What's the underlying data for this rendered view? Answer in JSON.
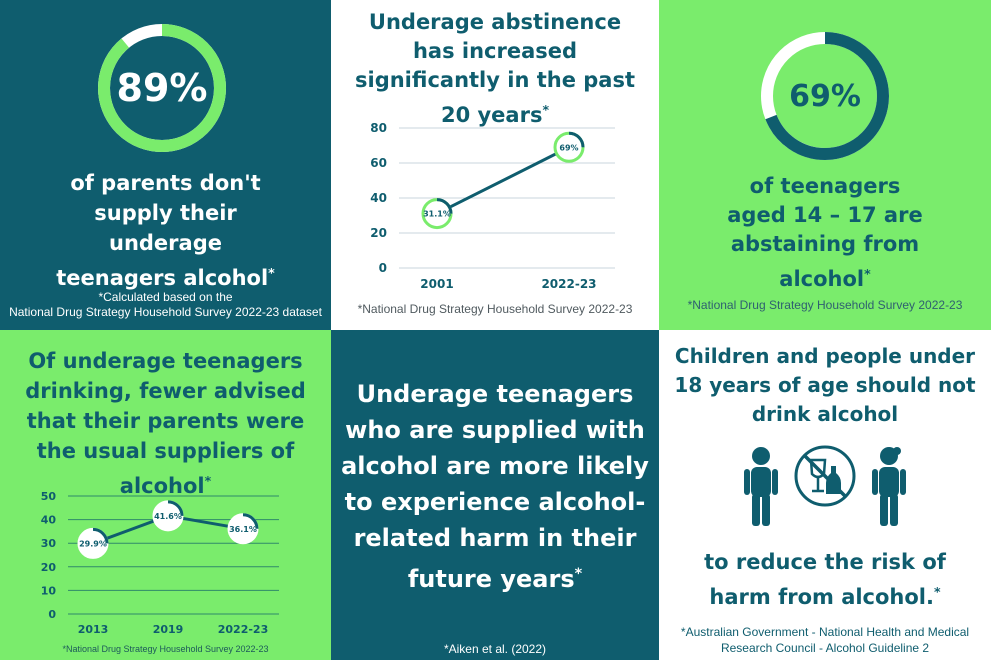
{
  "colors": {
    "teal": "#0f5d6e",
    "green": "#7aec6c",
    "white": "#ffffff"
  },
  "tile1": {
    "percent": "89%",
    "percent_value": 89,
    "text": "of parents don't supply their underage teenagers alcohol",
    "asterisk": "*",
    "footnote_line1": "*Calculated based on the",
    "footnote_line2": "National Drug Strategy Household Survey 2022-23 dataset"
  },
  "tile2": {
    "title": "Underage abstinence has increased significantly in the past 20 years",
    "asterisk": "*",
    "footnote": "*National Drug Strategy Household Survey 2022-23",
    "chart_data": {
      "type": "line",
      "x": [
        "2001",
        "2022-23"
      ],
      "values": [
        31.1,
        69
      ],
      "labels": [
        "31.1%",
        "69%"
      ],
      "ylim": [
        0,
        80
      ],
      "yticks": [
        "0",
        "20",
        "40",
        "60",
        "80"
      ]
    }
  },
  "tile3": {
    "percent": "69%",
    "percent_value": 69,
    "text": "of teenagers aged 14 – 17 are abstaining from alcohol",
    "asterisk": "*",
    "footnote": "*National Drug Strategy Household Survey 2022-23"
  },
  "tile4": {
    "title": "Of underage teenagers drinking, fewer advised that their parents were the usual suppliers of alcohol",
    "asterisk": "*",
    "footnote": "*National Drug Strategy Household Survey 2022-23",
    "chart_data": {
      "type": "line",
      "x": [
        "2013",
        "2019",
        "2022-23"
      ],
      "values": [
        29.9,
        41.6,
        36.1
      ],
      "labels": [
        "29.9%",
        "41.6%",
        "36.1%"
      ],
      "ylim": [
        0,
        50
      ],
      "yticks": [
        "0",
        "10",
        "20",
        "30",
        "40",
        "50"
      ]
    }
  },
  "tile5": {
    "text": "Underage teenagers who are supplied with alcohol are more likely to experience alcohol-related harm in their future years",
    "asterisk": "*",
    "footnote": "*Aiken et al. (2022)"
  },
  "tile6": {
    "title": "Children and people under 18 years of age should not drink alcohol",
    "text": "to reduce the risk of harm from alcohol.",
    "asterisk": "*",
    "footnote_line1": "*Australian Government - National Health and Medical",
    "footnote_line2": "Research Council - Alcohol Guideline 2"
  }
}
